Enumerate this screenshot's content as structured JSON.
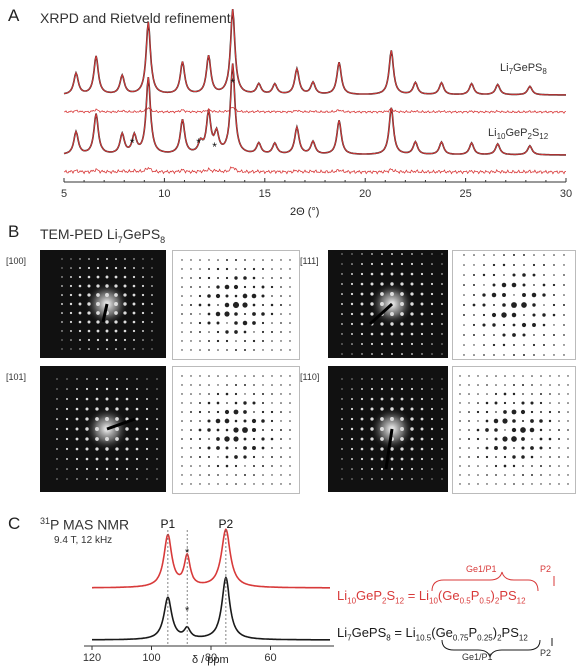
{
  "panelA": {
    "letter": "A",
    "title": "XRPD and Rietveld refinement",
    "sample_top": {
      "base": "Li",
      "sub1": "7",
      "mid": "GePS",
      "sub2": "8",
      "tail": "",
      "sub3": ""
    },
    "sample_bottom": {
      "base": "Li",
      "sub1": "10",
      "mid": "GeP",
      "sub2": "2",
      "tail": "S",
      "sub3": "12"
    },
    "xlabel": "2Θ (°)",
    "xticks": [
      "5",
      "10",
      "15",
      "20",
      "25",
      "30"
    ],
    "impurity_marker": "*",
    "colors": {
      "observed": "#1a1a1a",
      "calculated": "#d83a3a",
      "difference": "#d83a3a"
    }
  },
  "panelB": {
    "letter": "B",
    "title_prefix": "TEM-PED Li",
    "title_sub1": "7",
    "title_mid": "GePS",
    "title_sub2": "8",
    "zones": [
      "[100]",
      "[111]",
      "[101]",
      "[110]"
    ]
  },
  "panelC": {
    "letter": "C",
    "title_sup": "31",
    "title": "P MAS NMR",
    "conditions": "9.4 T, 12 kHz",
    "peak_labels": [
      "P1",
      "P2"
    ],
    "star": "*",
    "xlabel": "δ / ppm",
    "xticks": [
      "120",
      "100",
      "80",
      "60"
    ],
    "ge_label": "Ge1/P1",
    "p2_label": "P2",
    "formula_red_lhs": "Li10GeP2S12 =",
    "formula_red_rhs": "Li10(Ge0.5P0.5)2PS12",
    "formula_black_lhs": "Li7GePS8 =",
    "formula_black_rhs": "Li10.5(Ge0.75P0.25)2PS12",
    "colors": {
      "red": "#d83a3a",
      "black": "#1a1a1a"
    }
  }
}
